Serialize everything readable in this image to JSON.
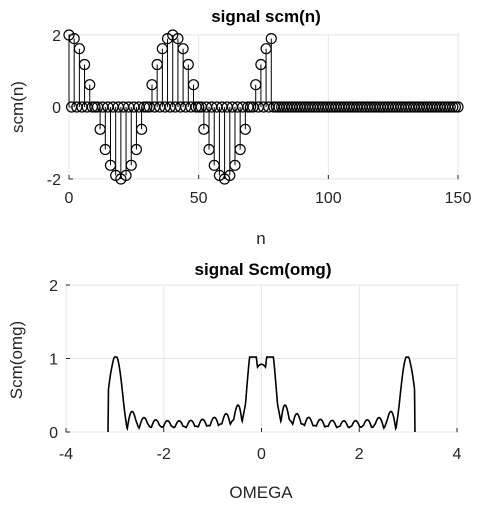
{
  "chart_data": [
    {
      "type": "stem",
      "title": "signal scm(n)",
      "xlabel": "n",
      "ylabel": "scm(n)",
      "xlim": [
        0,
        150
      ],
      "ylim": [
        -2,
        2
      ],
      "xticks": [
        "0",
        "50",
        "100",
        "150"
      ],
      "yticks": [
        "2",
        "0",
        "-2"
      ],
      "grid": true,
      "series": [
        {
          "n_start": 0,
          "n_end": 150,
          "nonzero_range": [
            0,
            79
          ],
          "values": [
            2,
            0,
            1.9,
            0,
            1.62,
            0,
            1.18,
            0,
            0.62,
            0,
            0,
            0,
            -0.62,
            0,
            -1.18,
            0,
            -1.62,
            0,
            -1.9,
            0,
            -2,
            0,
            -1.9,
            0,
            -1.62,
            0,
            -1.18,
            0,
            -0.62,
            0,
            0,
            0,
            0.62,
            0,
            1.18,
            0,
            1.62,
            0,
            1.9,
            0,
            2,
            0,
            1.9,
            0,
            1.62,
            0,
            1.18,
            0,
            0.62,
            0,
            0,
            0,
            -0.62,
            0,
            -1.18,
            0,
            -1.62,
            0,
            -1.9,
            0,
            -2,
            0,
            -1.9,
            0,
            -1.62,
            0,
            -1.18,
            0,
            -0.62,
            0,
            0,
            0,
            0.62,
            0,
            1.18,
            0,
            1.62,
            0,
            1.9,
            0
          ]
        }
      ]
    },
    {
      "type": "line",
      "title": "signal Scm(omg)",
      "xlabel": "OMEGA",
      "ylabel": "Scm(omg)",
      "xlim": [
        -4,
        4
      ],
      "ylim": [
        0,
        2
      ],
      "xticks": [
        "-4",
        "-2",
        "0",
        "2",
        "4"
      ],
      "yticks": [
        "2",
        "1",
        "0"
      ],
      "grid": true,
      "peaks": [
        {
          "omega": -2.99,
          "magnitude": 1.0
        },
        {
          "omega": -0.157,
          "magnitude": 1.0
        },
        {
          "omega": 0.157,
          "magnitude": 1.0
        },
        {
          "omega": 2.99,
          "magnitude": 1.0
        }
      ],
      "omega_range": [
        -3.14,
        3.14
      ],
      "sidelobe_level": 0.2
    }
  ]
}
